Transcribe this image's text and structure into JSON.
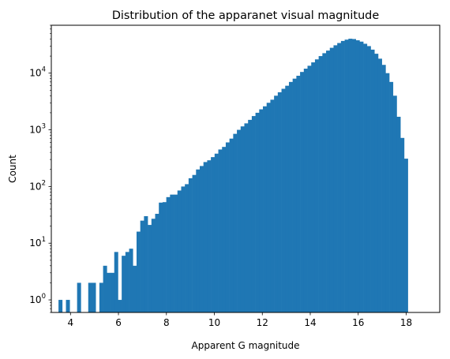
{
  "chart_data": {
    "type": "bar",
    "title": "Distribution of the apparanet visual magnitude",
    "xlabel": "Apparent G magnitude",
    "ylabel": "Count",
    "xlim": [
      3.2,
      19.4
    ],
    "ylim": [
      0.6,
      70000
    ],
    "yscale": "log",
    "grid": false,
    "legend": "none",
    "color": "#1f77b4",
    "x_ticks": [
      4,
      6,
      8,
      10,
      12,
      14,
      16,
      18
    ],
    "x_tick_labels": [
      "4",
      "6",
      "8",
      "10",
      "12",
      "14",
      "16",
      "18"
    ],
    "y_ticks": [
      1,
      10,
      100,
      1000,
      10000
    ],
    "y_tick_labels": [
      {
        "base": "10",
        "exp": "0"
      },
      {
        "base": "10",
        "exp": "1"
      },
      {
        "base": "10",
        "exp": "2"
      },
      {
        "base": "10",
        "exp": "3"
      },
      {
        "base": "10",
        "exp": "4"
      }
    ],
    "bin_start": 3.5,
    "bin_width": 0.155,
    "counts": [
      1,
      0,
      1,
      0,
      0,
      2,
      0,
      0,
      2,
      2,
      0,
      2,
      4,
      3,
      3,
      7,
      1,
      6,
      7,
      8,
      4,
      16,
      25,
      30,
      21,
      27,
      33,
      52,
      53,
      65,
      72,
      72,
      85,
      100,
      110,
      140,
      160,
      200,
      230,
      270,
      290,
      330,
      380,
      450,
      500,
      600,
      700,
      850,
      1000,
      1150,
      1300,
      1500,
      1750,
      2000,
      2300,
      2600,
      3000,
      3400,
      4000,
      4600,
      5300,
      6000,
      7000,
      8000,
      9000,
      10500,
      12000,
      13500,
      15500,
      17500,
      20000,
      22500,
      25000,
      28000,
      31000,
      34000,
      37000,
      39000,
      40500,
      40000,
      38000,
      36000,
      33000,
      30000,
      26000,
      22000,
      18000,
      14000,
      10000,
      7000,
      4000,
      1700,
      720,
      310
    ]
  }
}
